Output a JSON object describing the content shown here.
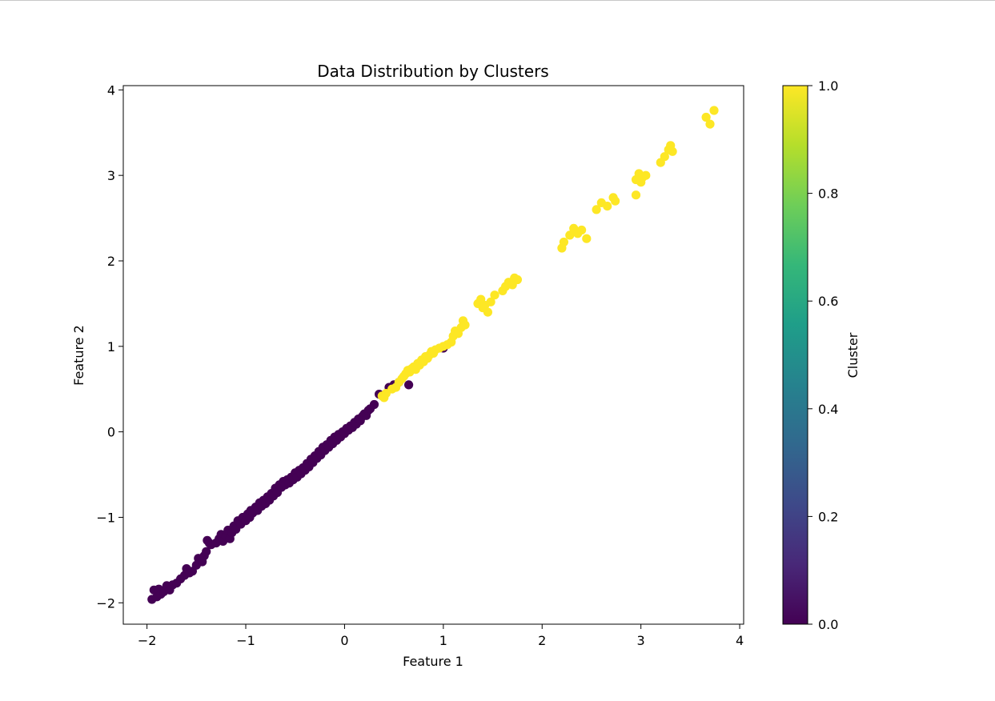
{
  "chart_data": {
    "type": "scatter",
    "title": "Data Distribution by Clusters",
    "xlabel": "Feature 1",
    "ylabel": "Feature 2",
    "xlim": [
      -2.24,
      4.04
    ],
    "ylim": [
      -2.25,
      4.05
    ],
    "xticks": [
      -2,
      -1,
      0,
      1,
      2,
      3,
      4
    ],
    "xtick_labels": [
      "−2",
      "−1",
      "0",
      "1",
      "2",
      "3",
      "4"
    ],
    "yticks": [
      -2,
      -1,
      0,
      1,
      2,
      3,
      4
    ],
    "ytick_labels": [
      "−2",
      "−1",
      "0",
      "1",
      "2",
      "3",
      "4"
    ],
    "grid": false,
    "colormap": "viridis",
    "colorbar": {
      "label": "Cluster",
      "range": [
        0.0,
        1.0
      ],
      "ticks": [
        0.0,
        0.2,
        0.4,
        0.6,
        0.8,
        1.0
      ],
      "tick_labels": [
        "0.0",
        "0.2",
        "0.4",
        "0.6",
        "0.8",
        "1.0"
      ],
      "stops": [
        "#440154",
        "#482878",
        "#3e4989",
        "#31688e",
        "#26828e",
        "#1f9e89",
        "#35b779",
        "#6ece58",
        "#b5de2b",
        "#fde725"
      ]
    },
    "series": [
      {
        "cluster": 0,
        "color": "#440154",
        "points": [
          [
            -1.95,
            -1.96
          ],
          [
            -1.93,
            -1.85
          ],
          [
            -1.9,
            -1.93
          ],
          [
            -1.88,
            -1.84
          ],
          [
            -1.86,
            -1.9
          ],
          [
            -1.83,
            -1.87
          ],
          [
            -1.8,
            -1.8
          ],
          [
            -1.77,
            -1.85
          ],
          [
            -1.74,
            -1.79
          ],
          [
            -1.7,
            -1.77
          ],
          [
            -1.66,
            -1.72
          ],
          [
            -1.62,
            -1.68
          ],
          [
            -1.6,
            -1.6
          ],
          [
            -1.57,
            -1.65
          ],
          [
            -1.54,
            -1.63
          ],
          [
            -1.5,
            -1.56
          ],
          [
            -1.48,
            -1.48
          ],
          [
            -1.46,
            -1.51
          ],
          [
            -1.44,
            -1.52
          ],
          [
            -1.42,
            -1.45
          ],
          [
            -1.4,
            -1.4
          ],
          [
            -1.39,
            -1.27
          ],
          [
            -1.37,
            -1.3
          ],
          [
            -1.35,
            -1.32
          ],
          [
            -1.3,
            -1.3
          ],
          [
            -1.27,
            -1.25
          ],
          [
            -1.25,
            -1.2
          ],
          [
            -1.23,
            -1.28
          ],
          [
            -1.2,
            -1.22
          ],
          [
            -1.18,
            -1.15
          ],
          [
            -1.16,
            -1.25
          ],
          [
            -1.14,
            -1.18
          ],
          [
            -1.12,
            -1.1
          ],
          [
            -1.1,
            -1.14
          ],
          [
            -1.08,
            -1.04
          ],
          [
            -1.05,
            -1.08
          ],
          [
            -1.03,
            -1.0
          ],
          [
            -1.0,
            -1.04
          ],
          [
            -0.98,
            -0.96
          ],
          [
            -0.96,
            -1.0
          ],
          [
            -0.95,
            -0.92
          ],
          [
            -0.93,
            -0.95
          ],
          [
            -0.9,
            -0.88
          ],
          [
            -0.88,
            -0.92
          ],
          [
            -0.86,
            -0.83
          ],
          [
            -0.84,
            -0.87
          ],
          [
            -0.82,
            -0.8
          ],
          [
            -0.8,
            -0.84
          ],
          [
            -0.78,
            -0.76
          ],
          [
            -0.76,
            -0.8
          ],
          [
            -0.74,
            -0.72
          ],
          [
            -0.72,
            -0.75
          ],
          [
            -0.7,
            -0.66
          ],
          [
            -0.68,
            -0.71
          ],
          [
            -0.66,
            -0.62
          ],
          [
            -0.64,
            -0.65
          ],
          [
            -0.62,
            -0.58
          ],
          [
            -0.6,
            -0.62
          ],
          [
            -0.58,
            -0.56
          ],
          [
            -0.56,
            -0.6
          ],
          [
            -0.54,
            -0.53
          ],
          [
            -0.52,
            -0.56
          ],
          [
            -0.5,
            -0.48
          ],
          [
            -0.48,
            -0.53
          ],
          [
            -0.46,
            -0.45
          ],
          [
            -0.44,
            -0.49
          ],
          [
            -0.42,
            -0.42
          ],
          [
            -0.4,
            -0.45
          ],
          [
            -0.38,
            -0.37
          ],
          [
            -0.36,
            -0.41
          ],
          [
            -0.34,
            -0.32
          ],
          [
            -0.32,
            -0.36
          ],
          [
            -0.3,
            -0.28
          ],
          [
            -0.28,
            -0.31
          ],
          [
            -0.26,
            -0.23
          ],
          [
            -0.24,
            -0.27
          ],
          [
            -0.22,
            -0.18
          ],
          [
            -0.2,
            -0.22
          ],
          [
            -0.18,
            -0.15
          ],
          [
            -0.16,
            -0.18
          ],
          [
            -0.14,
            -0.1
          ],
          [
            -0.12,
            -0.14
          ],
          [
            -0.1,
            -0.06
          ],
          [
            -0.08,
            -0.1
          ],
          [
            -0.06,
            -0.03
          ],
          [
            -0.04,
            -0.06
          ],
          [
            -0.02,
            0.0
          ],
          [
            0.0,
            -0.02
          ],
          [
            0.02,
            0.04
          ],
          [
            0.04,
            0.02
          ],
          [
            0.06,
            0.07
          ],
          [
            0.08,
            0.05
          ],
          [
            0.1,
            0.11
          ],
          [
            0.12,
            0.09
          ],
          [
            0.14,
            0.15
          ],
          [
            0.16,
            0.13
          ],
          [
            0.18,
            0.18
          ],
          [
            0.2,
            0.21
          ],
          [
            0.22,
            0.19
          ],
          [
            0.24,
            0.25
          ],
          [
            0.26,
            0.27
          ],
          [
            0.3,
            0.32
          ],
          [
            0.35,
            0.44
          ],
          [
            0.45,
            0.52
          ],
          [
            0.5,
            0.55
          ],
          [
            0.55,
            0.58
          ],
          [
            0.65,
            0.55
          ],
          [
            1.0,
            0.98
          ]
        ]
      },
      {
        "cluster": 1,
        "color": "#fde725",
        "points": [
          [
            0.38,
            0.42
          ],
          [
            0.4,
            0.4
          ],
          [
            0.42,
            0.45
          ],
          [
            0.48,
            0.5
          ],
          [
            0.52,
            0.52
          ],
          [
            0.55,
            0.58
          ],
          [
            0.58,
            0.62
          ],
          [
            0.6,
            0.65
          ],
          [
            0.62,
            0.68
          ],
          [
            0.64,
            0.72
          ],
          [
            0.66,
            0.7
          ],
          [
            0.68,
            0.74
          ],
          [
            0.7,
            0.76
          ],
          [
            0.72,
            0.73
          ],
          [
            0.74,
            0.8
          ],
          [
            0.76,
            0.78
          ],
          [
            0.78,
            0.84
          ],
          [
            0.8,
            0.82
          ],
          [
            0.82,
            0.88
          ],
          [
            0.84,
            0.86
          ],
          [
            0.86,
            0.9
          ],
          [
            0.88,
            0.94
          ],
          [
            0.9,
            0.92
          ],
          [
            0.92,
            0.96
          ],
          [
            0.96,
            0.98
          ],
          [
            1.0,
            1.0
          ],
          [
            1.04,
            1.02
          ],
          [
            1.08,
            1.05
          ],
          [
            1.1,
            1.12
          ],
          [
            1.12,
            1.18
          ],
          [
            1.15,
            1.15
          ],
          [
            1.18,
            1.22
          ],
          [
            1.2,
            1.3
          ],
          [
            1.22,
            1.25
          ],
          [
            1.35,
            1.5
          ],
          [
            1.38,
            1.55
          ],
          [
            1.4,
            1.45
          ],
          [
            1.42,
            1.48
          ],
          [
            1.45,
            1.4
          ],
          [
            1.48,
            1.52
          ],
          [
            1.52,
            1.6
          ],
          [
            1.6,
            1.65
          ],
          [
            1.63,
            1.7
          ],
          [
            1.66,
            1.75
          ],
          [
            1.7,
            1.72
          ],
          [
            1.72,
            1.8
          ],
          [
            1.75,
            1.78
          ],
          [
            2.2,
            2.15
          ],
          [
            2.22,
            2.22
          ],
          [
            2.28,
            2.3
          ],
          [
            2.32,
            2.38
          ],
          [
            2.36,
            2.32
          ],
          [
            2.4,
            2.36
          ],
          [
            2.45,
            2.26
          ],
          [
            2.55,
            2.6
          ],
          [
            2.6,
            2.68
          ],
          [
            2.66,
            2.64
          ],
          [
            2.72,
            2.74
          ],
          [
            2.74,
            2.7
          ],
          [
            2.95,
            2.95
          ],
          [
            2.98,
            3.02
          ],
          [
            3.0,
            2.92
          ],
          [
            3.02,
            2.98
          ],
          [
            3.05,
            3.0
          ],
          [
            3.2,
            3.15
          ],
          [
            3.24,
            3.22
          ],
          [
            3.28,
            3.3
          ],
          [
            3.3,
            3.35
          ],
          [
            3.32,
            3.28
          ],
          [
            3.66,
            3.68
          ],
          [
            3.7,
            3.6
          ],
          [
            3.74,
            3.76
          ],
          [
            2.95,
            2.77
          ]
        ]
      }
    ]
  }
}
